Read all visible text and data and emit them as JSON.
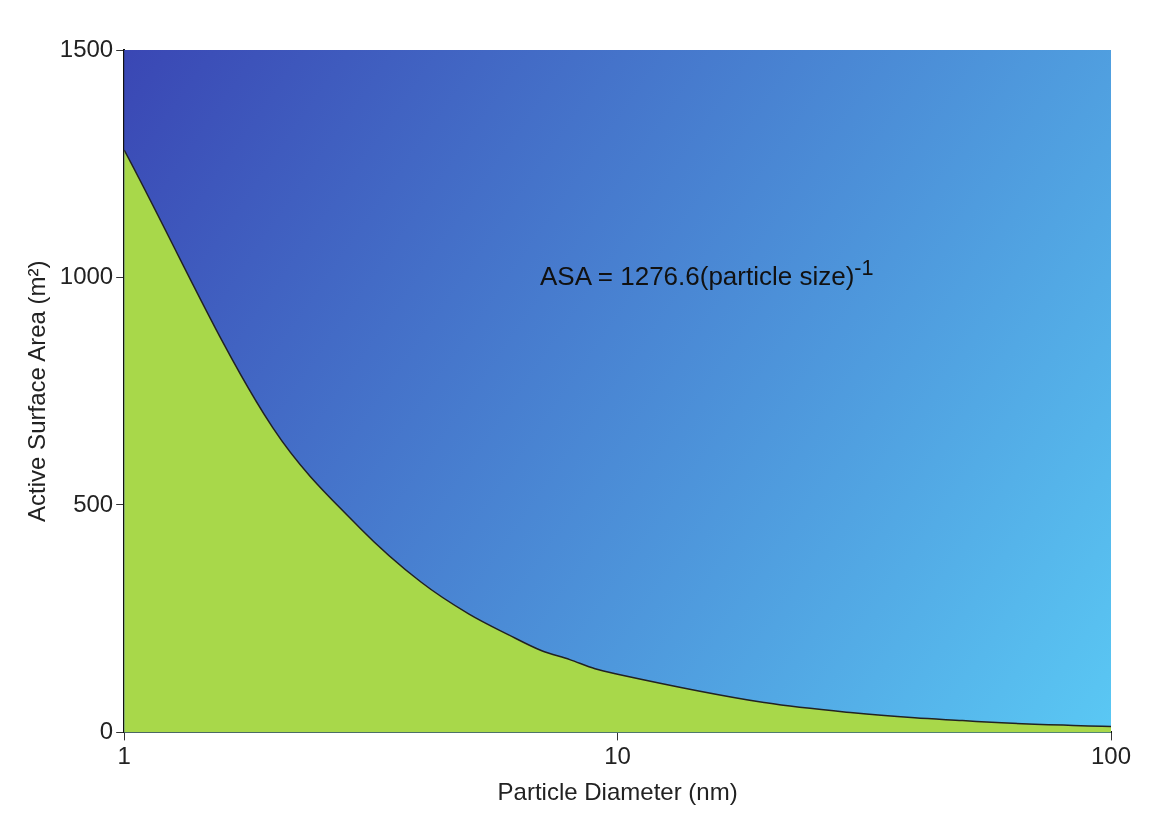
{
  "chart_data": {
    "type": "area",
    "xlabel": "Particle Diameter (nm)",
    "ylabel": "Active Surface Area (m²)",
    "x": [
      1,
      2,
      3,
      4,
      5,
      6,
      7,
      8,
      9,
      10,
      20,
      30,
      40,
      50,
      60,
      70,
      80,
      90,
      100
    ],
    "series": [
      {
        "color": "#a8d84a",
        "values": [
          1280,
          670,
          450,
          330,
          260,
          215,
          180,
          160,
          140,
          128,
          65,
          43,
          32,
          26,
          21,
          18,
          16,
          14,
          13
        ]
      }
    ],
    "log": "x",
    "xlim": [
      1,
      100
    ],
    "xticks": [
      1,
      10,
      100
    ],
    "ylim": [
      0,
      1500
    ],
    "yticks": [
      0,
      500,
      1000,
      1500
    ],
    "grid": false,
    "legend": false,
    "marker": "none",
    "annotations": [
      "ASA = 1276.6(particle size)$^{-1}$"
    ]
  }
}
